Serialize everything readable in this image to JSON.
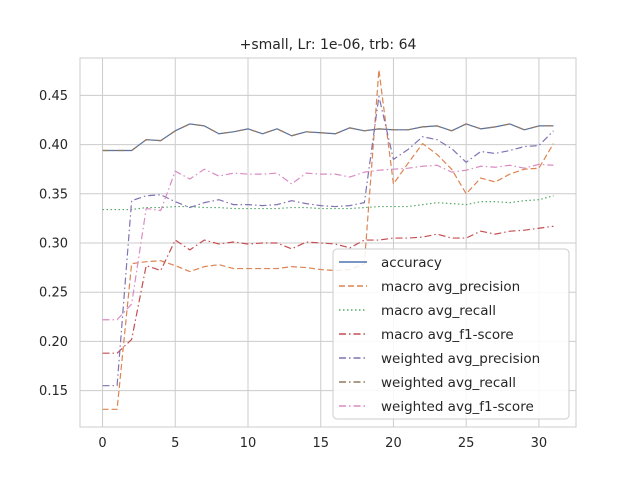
{
  "chart_data": {
    "type": "line",
    "title": "+small, Lr: 1e-06, trb: 64",
    "xlabel": "",
    "ylabel": "",
    "xlim": [
      -1.55,
      32.55
    ],
    "ylim": [
      0.113,
      0.488
    ],
    "xticks": [
      0,
      5,
      10,
      15,
      20,
      25,
      30
    ],
    "yticks": [
      0.15,
      0.2,
      0.25,
      0.3,
      0.35,
      0.4,
      0.45
    ],
    "grid": true,
    "legend_position": "lower-right",
    "x": [
      0,
      1,
      2,
      3,
      4,
      5,
      6,
      7,
      8,
      9,
      10,
      11,
      12,
      13,
      14,
      15,
      16,
      17,
      18,
      19,
      20,
      21,
      22,
      23,
      24,
      25,
      26,
      27,
      28,
      29,
      30,
      31
    ],
    "series": [
      {
        "name": "accuracy",
        "color": "#4c72b0",
        "dash": "solid",
        "values": [
          0.394,
          0.394,
          0.394,
          0.405,
          0.404,
          0.414,
          0.421,
          0.419,
          0.411,
          0.413,
          0.416,
          0.411,
          0.416,
          0.409,
          0.413,
          0.412,
          0.411,
          0.417,
          0.414,
          0.416,
          0.415,
          0.415,
          0.418,
          0.419,
          0.414,
          0.421,
          0.416,
          0.418,
          0.421,
          0.415,
          0.419,
          0.419
        ]
      },
      {
        "name": "macro avg_precision",
        "color": "#dd8452",
        "dash": "dashed",
        "values": [
          0.131,
          0.131,
          0.279,
          0.281,
          0.282,
          0.277,
          0.271,
          0.276,
          0.278,
          0.274,
          0.274,
          0.274,
          0.274,
          0.276,
          0.275,
          0.273,
          0.272,
          0.273,
          0.279,
          0.476,
          0.36,
          0.381,
          0.401,
          0.39,
          0.375,
          0.35,
          0.366,
          0.362,
          0.37,
          0.375,
          0.376,
          0.401
        ]
      },
      {
        "name": "macro avg_recall",
        "color": "#55a868",
        "dash": "dotted",
        "values": [
          0.334,
          0.334,
          0.334,
          0.336,
          0.336,
          0.337,
          0.337,
          0.336,
          0.336,
          0.335,
          0.335,
          0.335,
          0.335,
          0.336,
          0.336,
          0.335,
          0.335,
          0.335,
          0.336,
          0.337,
          0.337,
          0.337,
          0.339,
          0.341,
          0.34,
          0.339,
          0.342,
          0.342,
          0.341,
          0.343,
          0.344,
          0.348
        ]
      },
      {
        "name": "macro avg_f1-score",
        "color": "#c44e52",
        "dash": "dashdot",
        "values": [
          0.188,
          0.188,
          0.202,
          0.277,
          0.272,
          0.303,
          0.293,
          0.303,
          0.299,
          0.301,
          0.299,
          0.3,
          0.3,
          0.294,
          0.301,
          0.3,
          0.299,
          0.295,
          0.303,
          0.303,
          0.305,
          0.305,
          0.306,
          0.309,
          0.305,
          0.305,
          0.312,
          0.309,
          0.312,
          0.313,
          0.315,
          0.317
        ]
      },
      {
        "name": "weighted avg_precision",
        "color": "#8172b3",
        "dash": "dashdot",
        "values": [
          0.155,
          0.155,
          0.343,
          0.348,
          0.349,
          0.342,
          0.336,
          0.341,
          0.344,
          0.339,
          0.339,
          0.338,
          0.339,
          0.343,
          0.34,
          0.338,
          0.337,
          0.338,
          0.341,
          0.449,
          0.385,
          0.395,
          0.408,
          0.405,
          0.396,
          0.382,
          0.393,
          0.391,
          0.394,
          0.398,
          0.399,
          0.414
        ]
      },
      {
        "name": "weighted avg_recall",
        "color": "#937860",
        "dash": "dashdot",
        "values": [
          0.394,
          0.394,
          0.394,
          0.405,
          0.404,
          0.414,
          0.421,
          0.419,
          0.411,
          0.413,
          0.416,
          0.411,
          0.416,
          0.409,
          0.413,
          0.412,
          0.411,
          0.417,
          0.414,
          0.416,
          0.415,
          0.415,
          0.418,
          0.419,
          0.414,
          0.421,
          0.416,
          0.418,
          0.421,
          0.415,
          0.419,
          0.419
        ]
      },
      {
        "name": "weighted avg_f1-score",
        "color": "#da8bc3",
        "dash": "dashdot",
        "values": [
          0.222,
          0.222,
          0.238,
          0.335,
          0.333,
          0.373,
          0.365,
          0.375,
          0.368,
          0.371,
          0.37,
          0.37,
          0.371,
          0.36,
          0.371,
          0.37,
          0.37,
          0.367,
          0.372,
          0.374,
          0.375,
          0.376,
          0.378,
          0.379,
          0.372,
          0.374,
          0.378,
          0.377,
          0.379,
          0.376,
          0.38,
          0.379
        ]
      }
    ]
  }
}
